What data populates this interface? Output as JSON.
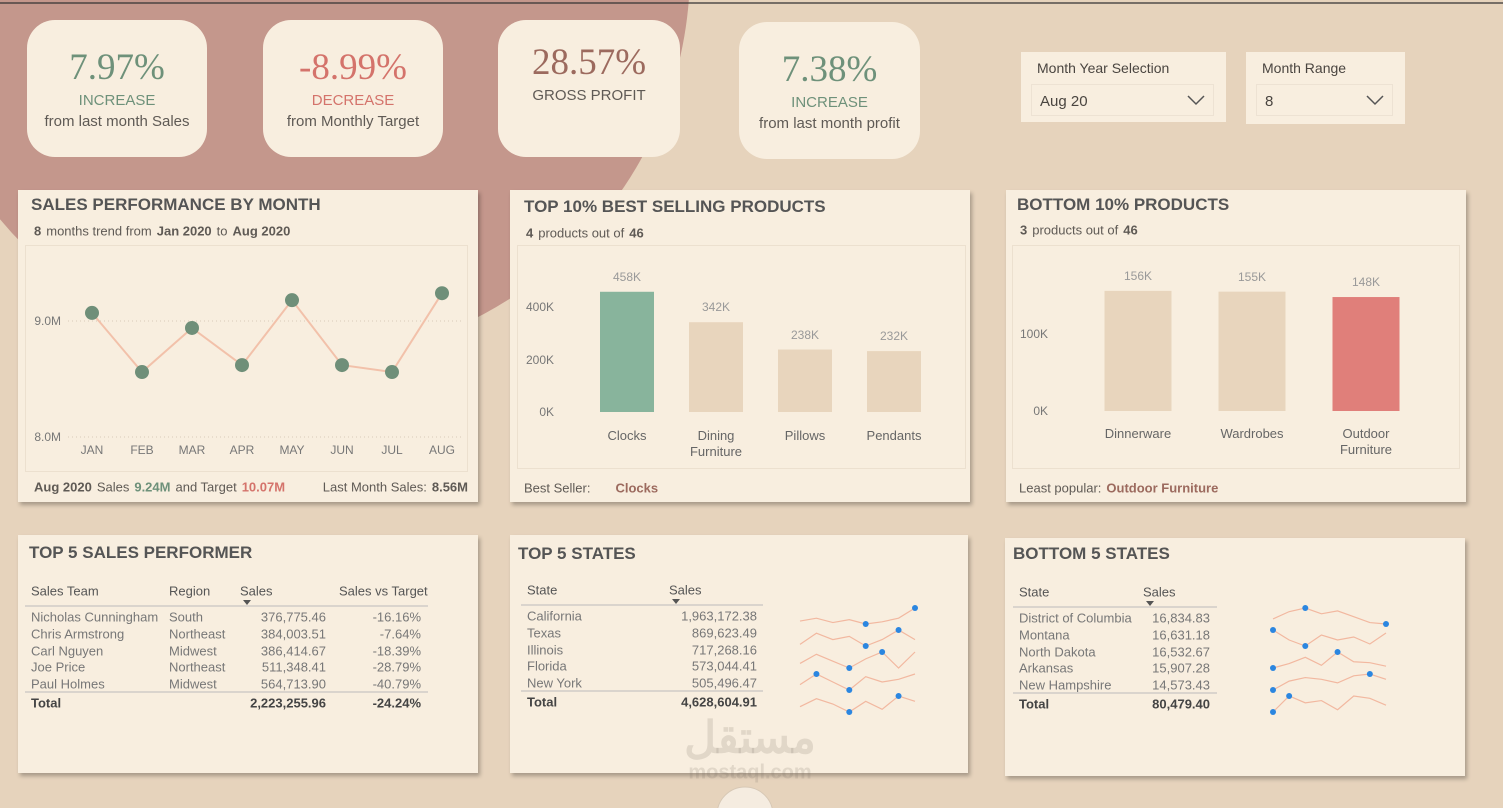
{
  "kpis": [
    {
      "value": "7.97%",
      "label": "INCREASE",
      "caption": "from last month Sales",
      "value_color": "#6e917a",
      "label_color": "#6e917a"
    },
    {
      "value": "-8.99%",
      "label": "DECREASE",
      "caption": "from Monthly Target",
      "value_color": "#d4736b",
      "label_color": "#d4736b"
    },
    {
      "value": "28.57%",
      "label": "GROSS PROFIT",
      "value_color": "#9c6a5e",
      "label_color": "#5f5a55"
    },
    {
      "value": "7.38%",
      "label": "INCREASE",
      "caption": "from last month profit",
      "value_color": "#6e917a",
      "label_color": "#6e917a"
    }
  ],
  "filters": [
    {
      "label": "Month Year Selection",
      "value": "Aug 20"
    },
    {
      "label": "Month Range",
      "value": "8"
    }
  ],
  "panels": {
    "sales": {
      "subtitle": [
        "8",
        "months trend from",
        "Jan 2020",
        "to",
        "Aug 2020"
      ],
      "footer_left": [
        "Aug 2020",
        "Sales",
        "9.24M",
        "and Target",
        "10.07M"
      ],
      "footer_right": [
        "Last Month Sales:",
        "8.56M"
      ]
    },
    "top_products": {
      "subtitle": [
        "4",
        "products out of",
        "46"
      ],
      "footer": [
        "Best Seller:",
        "Clocks"
      ]
    },
    "bottom_products": {
      "subtitle": [
        "3",
        "products out of",
        "46"
      ],
      "footer": [
        "Least popular:",
        "Outdoor Furniture"
      ]
    }
  },
  "chart_data": [
    {
      "type": "line",
      "title": "SALES PERFORMANCE BY MONTH",
      "categories": [
        "JAN",
        "FEB",
        "MAR",
        "APR",
        "MAY",
        "JUN",
        "JUL",
        "AUG"
      ],
      "values": [
        9070000,
        8560000,
        8940000,
        8620000,
        9180000,
        8620000,
        8560000,
        9240000
      ],
      "color": "#f2c1aa",
      "marker_color": "#6f8f79",
      "ylim": [
        8000000,
        9440000
      ],
      "yticks": [
        {
          "value": 8000000,
          "label": "8.0M"
        },
        {
          "value": 9000000,
          "label": "9.0M"
        }
      ],
      "grid": true
    },
    {
      "type": "bar",
      "title": "TOP 10% BEST SELLING PRODUCTS",
      "categories": [
        "Clocks",
        "Dining Furniture",
        "Pillows",
        "Pendants"
      ],
      "values": [
        458000,
        342000,
        238000,
        232000
      ],
      "value_labels": [
        "458K",
        "342K",
        "238K",
        "232K"
      ],
      "colors": [
        "#88b49c",
        "#e8d5bd",
        "#e8d5bd",
        "#e8d5bd"
      ],
      "ylim": [
        0,
        500000
      ],
      "yticks": [
        {
          "value": 0,
          "label": "0K"
        },
        {
          "value": 200000,
          "label": "200K"
        },
        {
          "value": 400000,
          "label": "400K"
        }
      ]
    },
    {
      "type": "bar",
      "title": "BOTTOM 10% PRODUCTS",
      "categories": [
        "Dinnerware",
        "Wardrobes",
        "Outdoor Furniture"
      ],
      "values": [
        156000,
        155000,
        148000
      ],
      "value_labels": [
        "156K",
        "155K",
        "148K"
      ],
      "colors": [
        "#e8d5bd",
        "#e8d5bd",
        "#e07f7a"
      ],
      "ylim": [
        0,
        200000
      ],
      "yticks": [
        {
          "value": 0,
          "label": "0K"
        },
        {
          "value": 100000,
          "label": "100K"
        }
      ]
    },
    {
      "type": "sparkline",
      "color": "#f2b8a0",
      "marker_color": "#2b86e0",
      "series": [
        {
          "values": [
            232000,
            236000,
            230000,
            234000,
            228000,
            231000,
            236000,
            250000
          ]
        },
        {
          "values": [
            105000,
            112000,
            108000,
            110000,
            104000,
            108000,
            114000,
            108000
          ]
        },
        {
          "values": [
            88000,
            92000,
            89000,
            86000,
            90000,
            93000,
            86000,
            93000
          ]
        },
        {
          "values": [
            70000,
            74000,
            71000,
            68000,
            73000,
            71000,
            72000,
            74000
          ]
        },
        {
          "values": [
            62000,
            65000,
            63000,
            60000,
            64000,
            61000,
            66000,
            64000
          ]
        }
      ]
    },
    {
      "type": "sparkline",
      "color": "#f2b8a0",
      "marker_color": "#2b86e0",
      "series": [
        {
          "values": [
            2050,
            2150,
            2200,
            2120,
            2160,
            2080,
            2000,
            1980
          ]
        },
        {
          "values": [
            2150,
            2050,
            1990,
            2100,
            2050,
            2080,
            2010,
            2120
          ]
        },
        {
          "values": [
            2000,
            2050,
            2120,
            2030,
            2180,
            2070,
            2060,
            2020
          ]
        },
        {
          "values": [
            1940,
            1990,
            2010,
            2000,
            1980,
            2020,
            2030,
            2000
          ]
        },
        {
          "values": [
            1780,
            1850,
            1820,
            1830,
            1790,
            1850,
            1840,
            1810
          ]
        }
      ]
    }
  ],
  "tables": [
    {
      "title": "TOP 5 SALES PERFORMER",
      "columns": [
        "Sales Team",
        "Region",
        "Sales",
        "Sales vs Target"
      ],
      "rows": [
        [
          "Nicholas Cunningham",
          "South",
          "376,775.46",
          "-16.16%"
        ],
        [
          "Chris Armstrong",
          "Northeast",
          "384,003.51",
          "-7.64%"
        ],
        [
          "Carl Nguyen",
          "Midwest",
          "386,414.67",
          "-18.39%"
        ],
        [
          "Joe Price",
          "Northeast",
          "511,348.41",
          "-28.79%"
        ],
        [
          "Paul Holmes",
          "Midwest",
          "564,713.90",
          "-40.79%"
        ]
      ],
      "total": [
        "Total",
        null,
        "2,223,255.96",
        "-24.24%"
      ]
    },
    {
      "title": "TOP 5 STATES",
      "columns": [
        "State",
        "Sales"
      ],
      "rows": [
        [
          "California",
          "1,963,172.38"
        ],
        [
          "Texas",
          "869,623.49"
        ],
        [
          "Illinois",
          "717,268.16"
        ],
        [
          "Florida",
          "573,044.41"
        ],
        [
          "New York",
          "505,496.47"
        ]
      ],
      "total": [
        "Total",
        "4,628,604.91"
      ]
    },
    {
      "title": "BOTTOM 5 STATES",
      "columns": [
        "State",
        "Sales"
      ],
      "rows": [
        [
          "District of Columbia",
          "16,834.83"
        ],
        [
          "Montana",
          "16,631.18"
        ],
        [
          "North Dakota",
          "16,532.67"
        ],
        [
          "Arkansas",
          "15,907.28"
        ],
        [
          "New Hampshire",
          "14,573.43"
        ]
      ],
      "total": [
        "Total",
        "80,479.40"
      ]
    }
  ],
  "watermark": [
    "مستقل",
    "mostaql.com"
  ]
}
